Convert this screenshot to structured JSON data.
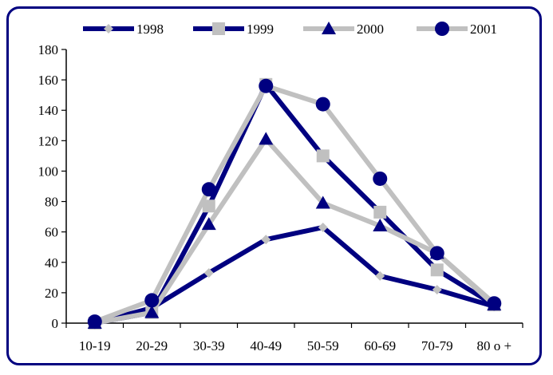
{
  "chart_data": {
    "type": "line",
    "title": "",
    "xlabel": "",
    "ylabel": "",
    "categories": [
      "10-19",
      "20-29",
      "30-39",
      "40-49",
      "50-59",
      "60-69",
      "70-79",
      "80 o +"
    ],
    "ylim": [
      0,
      180
    ],
    "yticks": [
      0,
      20,
      40,
      60,
      80,
      100,
      120,
      140,
      160,
      180
    ],
    "grid": false,
    "legend": "top",
    "series": [
      {
        "name": "1998",
        "values": [
          0,
          10,
          33,
          55,
          63,
          31,
          22,
          11
        ],
        "color": "#000080",
        "marker": "diamond",
        "marker_color": "#c0c0c0"
      },
      {
        "name": "1999",
        "values": [
          0,
          7,
          77,
          157,
          110,
          73,
          35,
          12
        ],
        "color": "#000080",
        "marker": "square",
        "marker_color": "#c0c0c0"
      },
      {
        "name": "2000",
        "values": [
          0,
          7,
          65,
          121,
          79,
          64,
          46,
          12
        ],
        "color": "#c0c0c0",
        "marker": "triangle",
        "marker_color": "#000080"
      },
      {
        "name": "2001",
        "values": [
          1,
          15,
          88,
          156,
          144,
          95,
          46,
          13
        ],
        "color": "#c0c0c0",
        "marker": "circle",
        "marker_color": "#000080"
      }
    ]
  }
}
